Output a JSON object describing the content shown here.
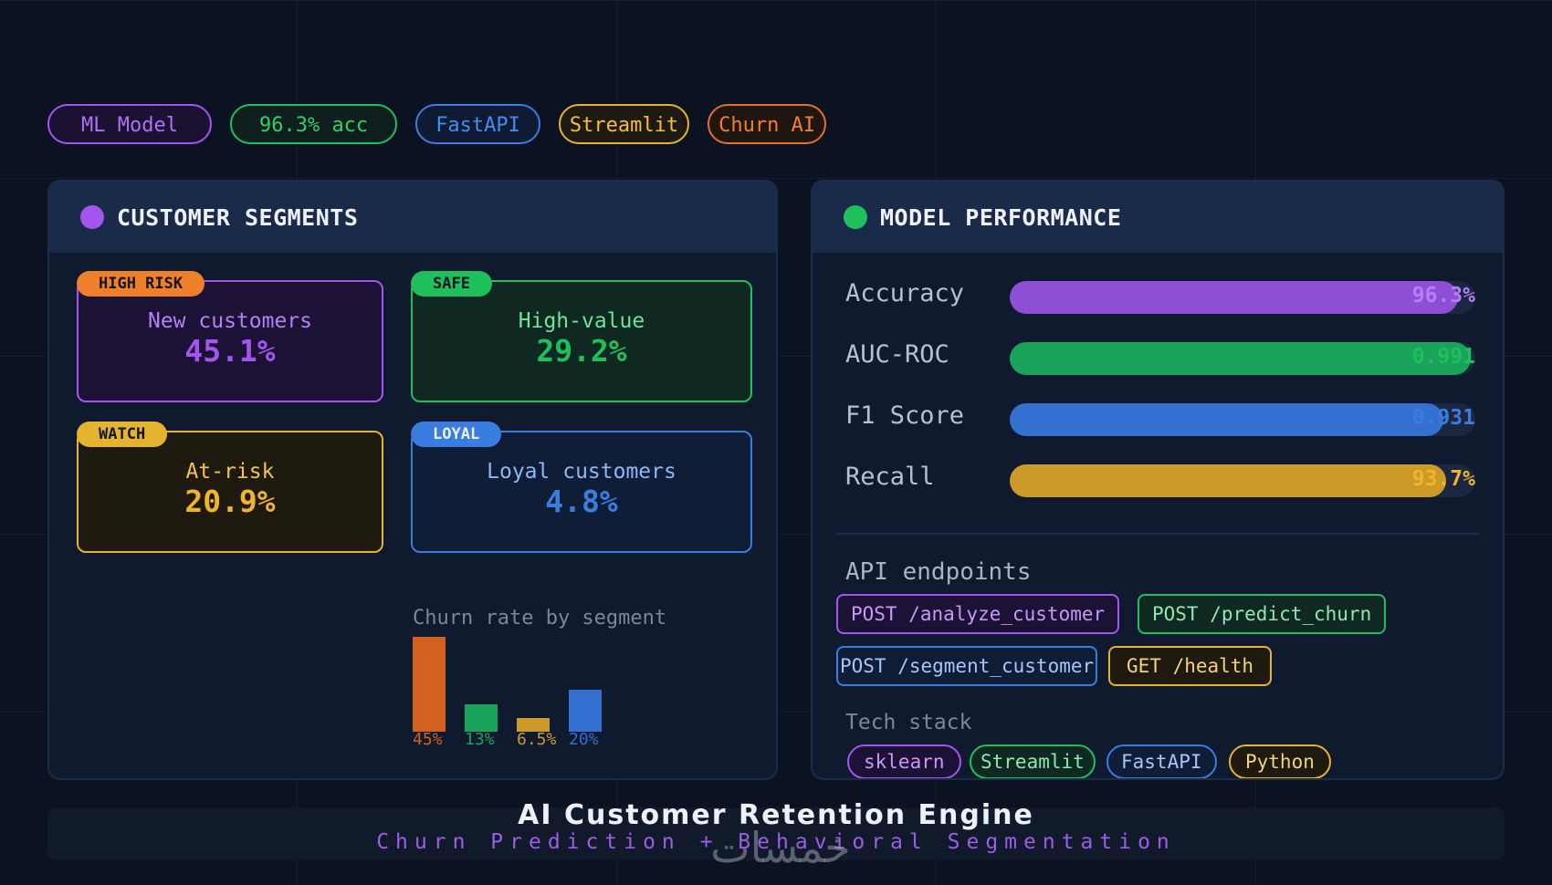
{
  "colors": {
    "purple": "#a455f0",
    "green": "#1fbf5c",
    "blue": "#3a7de0",
    "yellow": "#e5b32d",
    "orange": "#e0712a"
  },
  "pills": [
    {
      "label": "ML Model"
    },
    {
      "label": "96.3% acc"
    },
    {
      "label": "FastAPI"
    },
    {
      "label": "Streamlit"
    },
    {
      "label": "Churn AI"
    }
  ],
  "segments_card": {
    "title": "CUSTOMER SEGMENTS",
    "segments": [
      {
        "tag": "HIGH RISK",
        "label": "New customers",
        "value": "45.1%"
      },
      {
        "tag": "SAFE",
        "label": "High-value",
        "value": "29.2%"
      },
      {
        "tag": "WATCH",
        "label": "At-risk",
        "value": "20.9%"
      },
      {
        "tag": "LOYAL",
        "label": "Loyal customers",
        "value": "4.8%"
      }
    ],
    "chart_title": "Churn rate by segment"
  },
  "chart_data": {
    "type": "bar",
    "title": "Churn rate by segment",
    "categories": [
      "",
      "",
      "",
      ""
    ],
    "values": [
      45,
      13,
      6.5,
      20
    ],
    "value_labels": [
      "45%",
      "13%",
      "6.5%",
      "20%"
    ],
    "colors": [
      "#d2611f",
      "#1aa35a",
      "#cc9a27",
      "#3370d0"
    ],
    "ylim": [
      0,
      45
    ]
  },
  "performance_card": {
    "title": "MODEL PERFORMANCE",
    "metrics": [
      {
        "label": "Accuracy",
        "value": "96.3%",
        "fraction": 0.963
      },
      {
        "label": "AUC-ROC",
        "value": "0.991",
        "fraction": 0.991
      },
      {
        "label": "F1 Score",
        "value": "0.931",
        "fraction": 0.931
      },
      {
        "label": "Recall",
        "value": "93.7%",
        "fraction": 0.937
      }
    ],
    "api_label": "API endpoints",
    "endpoints": [
      {
        "label": "POST /analyze_customer"
      },
      {
        "label": "POST /predict_churn"
      },
      {
        "label": "POST /segment_customer"
      },
      {
        "label": "GET /health"
      }
    ],
    "tech_label": "Tech stack",
    "tech": [
      {
        "label": "sklearn"
      },
      {
        "label": "Streamlit"
      },
      {
        "label": "FastAPI"
      },
      {
        "label": "Python"
      }
    ]
  },
  "footer": {
    "title": "AI Customer Retention Engine",
    "subtitle": "Churn Prediction + Behavioral Segmentation",
    "watermark": "خمسات"
  }
}
